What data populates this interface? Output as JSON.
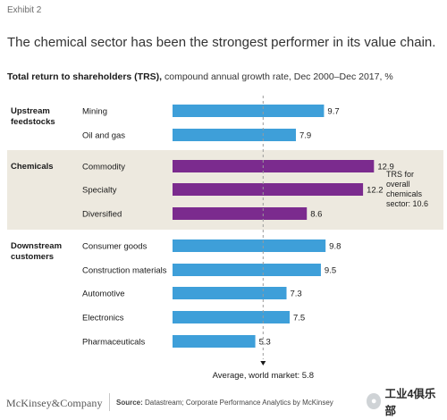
{
  "header": {
    "exhibit": "Exhibit 2"
  },
  "chart_data": {
    "type": "bar",
    "orientation": "horizontal",
    "title": "The chemical sector has been the strongest performer in its value chain.",
    "subtitle_bold": "Total return to shareholders (TRS),",
    "subtitle_rest": " compound annual growth rate, Dec 2000–Dec 2017, %",
    "groups": [
      {
        "name": [
          "Upstream",
          "feedstocks"
        ],
        "highlight": false
      },
      {
        "name": [
          "Chemicals"
        ],
        "highlight": true
      },
      {
        "name": [
          "Downstream",
          "customers"
        ],
        "highlight": false
      }
    ],
    "categories": [
      "Mining",
      "Oil and gas",
      "Commodity",
      "Specialty",
      "Diversified",
      "Consumer goods",
      "Construction materials",
      "Automotive",
      "Electronics",
      "Pharmaceuticals"
    ],
    "category_group": [
      0,
      0,
      1,
      1,
      1,
      2,
      2,
      2,
      2,
      2
    ],
    "values": [
      9.7,
      7.9,
      12.9,
      12.2,
      8.6,
      9.8,
      9.5,
      7.3,
      7.5,
      5.3
    ],
    "value_labels": [
      "9.7",
      "7.9",
      "12.9",
      "12.2",
      "8.6",
      "9.8",
      "9.5",
      "7.3",
      "7.5",
      "5.3"
    ],
    "xlim": [
      0,
      15
    ],
    "reference_line": {
      "value": 5.8,
      "label": "Average, world market: 5.8"
    },
    "annotation": [
      "TRS for",
      "overall",
      "chemicals",
      "sector: 10.6"
    ],
    "colors": {
      "upstream_downstream": "#3e9fd9",
      "chemicals": "#7b2b8e",
      "highlight_band": "#ede9df",
      "reference_line": "#9a9a9a"
    }
  },
  "footer": {
    "logo": "McKinsey&Company",
    "source_label": "Source:",
    "source_text": " Datastream; Corporate Performance Analytics by McKinsey"
  },
  "watermark": {
    "text": "工业4俱乐部",
    "icon": "wechat-icon"
  }
}
